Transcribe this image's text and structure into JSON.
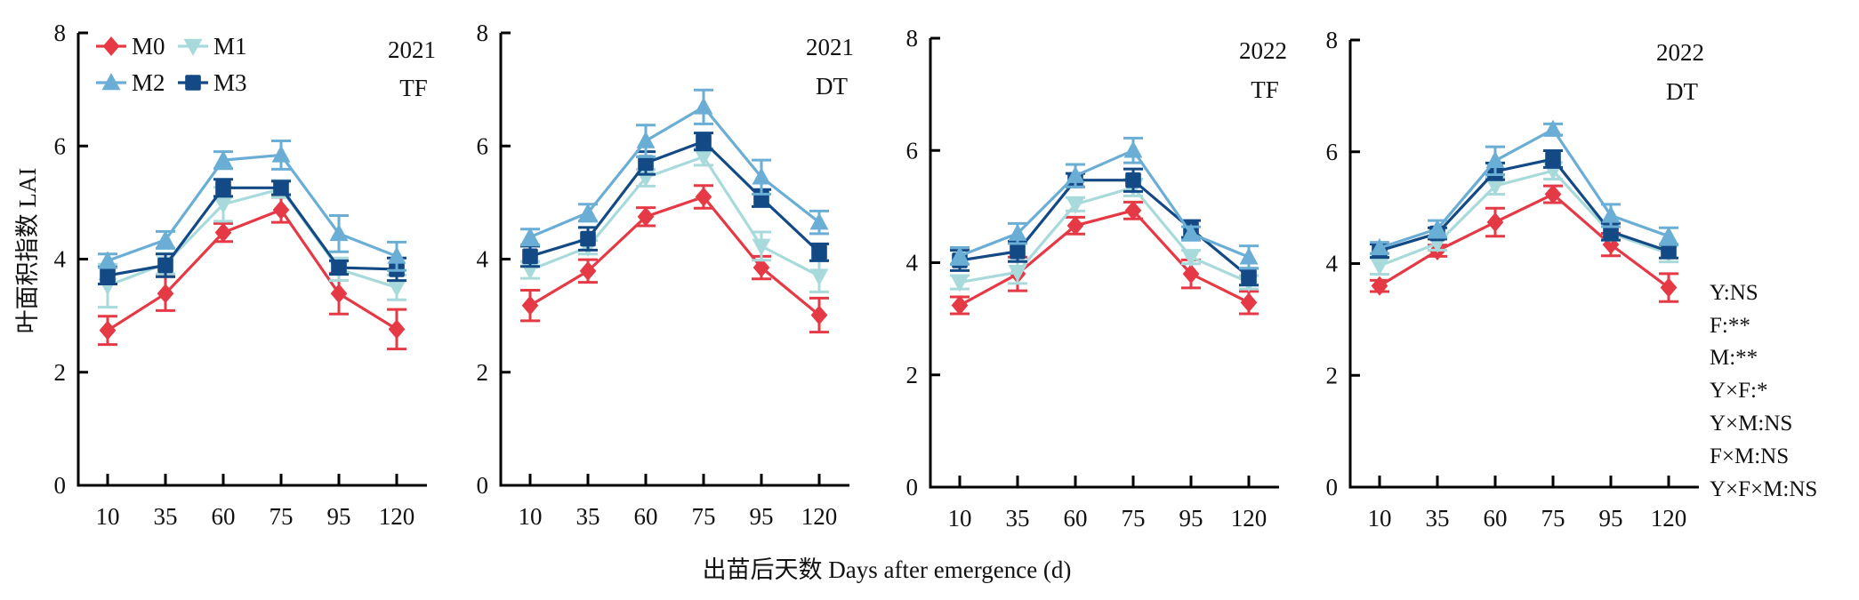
{
  "chart_data": {
    "type": "line",
    "ylabel": "叶面积指数 LAI",
    "xlabel": "出苗后天数 Days after emergence (d)",
    "ylim": [
      0,
      8
    ],
    "yticks": [
      "0",
      "2",
      "4",
      "6",
      "8"
    ],
    "categories": [
      "10",
      "35",
      "60",
      "75",
      "95",
      "120"
    ],
    "grid": false,
    "legend": {
      "placement": "top-left of first panel",
      "entries": [
        {
          "name": "M0",
          "marker": "diamond",
          "color": "#e63946"
        },
        {
          "name": "M1",
          "marker": "triangle-down",
          "color": "#a8dadc"
        },
        {
          "name": "M2",
          "marker": "triangle-up",
          "color": "#6aaed6"
        },
        {
          "name": "M3",
          "marker": "square",
          "color": "#134a86"
        }
      ]
    },
    "panels": [
      {
        "year": "2021",
        "site": "TF",
        "series": [
          {
            "name": "M0",
            "values": [
              2.74,
              3.39,
              4.47,
              4.87,
              3.39,
              2.76
            ],
            "errors": [
              0.25,
              0.3,
              0.16,
              0.22,
              0.36,
              0.35
            ]
          },
          {
            "name": "M1",
            "values": [
              3.53,
              3.92,
              4.97,
              5.24,
              3.82,
              3.5
            ],
            "errors": [
              0.38,
              0.18,
              0.3,
              0.15,
              0.2,
              0.22
            ]
          },
          {
            "name": "M2",
            "values": [
              3.97,
              4.34,
              5.75,
              5.84,
              4.45,
              4.05
            ],
            "errors": [
              0.12,
              0.15,
              0.15,
              0.25,
              0.32,
              0.25
            ]
          },
          {
            "name": "M3",
            "values": [
              3.71,
              3.89,
              5.26,
              5.26,
              3.85,
              3.82
            ],
            "errors": [
              0.15,
              0.2,
              0.15,
              0.12,
              0.12,
              0.2
            ]
          }
        ]
      },
      {
        "year": "2021",
        "site": "DT",
        "series": [
          {
            "name": "M0",
            "values": [
              3.18,
              3.79,
              4.75,
              5.1,
              3.85,
              3.01
            ],
            "errors": [
              0.27,
              0.2,
              0.16,
              0.2,
              0.2,
              0.3
            ]
          },
          {
            "name": "M1",
            "values": [
              3.81,
              4.21,
              5.44,
              5.81,
              4.23,
              3.7
            ],
            "errors": [
              0.15,
              0.12,
              0.15,
              0.15,
              0.25,
              0.28
            ]
          },
          {
            "name": "M2",
            "values": [
              4.39,
              4.82,
              6.09,
              6.69,
              5.45,
              4.65
            ],
            "errors": [
              0.14,
              0.15,
              0.28,
              0.3,
              0.3,
              0.2
            ]
          },
          {
            "name": "M3",
            "values": [
              4.05,
              4.36,
              5.7,
              6.08,
              5.08,
              4.12
            ],
            "errors": [
              0.18,
              0.2,
              0.2,
              0.15,
              0.15,
              0.15
            ]
          }
        ]
      },
      {
        "year": "2022",
        "site": "TF",
        "series": [
          {
            "name": "M0",
            "values": [
              3.24,
              3.8,
              4.66,
              4.93,
              3.8,
              3.29
            ],
            "errors": [
              0.15,
              0.3,
              0.15,
              0.15,
              0.25,
              0.2
            ]
          },
          {
            "name": "M1",
            "values": [
              3.65,
              3.83,
              5.04,
              5.34,
              4.1,
              3.65
            ],
            "errors": [
              0.12,
              0.2,
              0.12,
              0.15,
              0.12,
              0.12
            ]
          },
          {
            "name": "M2",
            "values": [
              4.12,
              4.52,
              5.55,
              6.0,
              4.52,
              4.1
            ],
            "errors": [
              0.15,
              0.18,
              0.2,
              0.22,
              0.12,
              0.2
            ]
          },
          {
            "name": "M3",
            "values": [
              4.04,
              4.2,
              5.47,
              5.47,
              4.6,
              3.75
            ],
            "errors": [
              0.18,
              0.18,
              0.12,
              0.2,
              0.15,
              0.15
            ]
          }
        ]
      },
      {
        "year": "2022",
        "site": "DT",
        "series": [
          {
            "name": "M0",
            "values": [
              3.6,
              4.23,
              4.74,
              5.24,
              4.34,
              3.57
            ],
            "errors": [
              0.1,
              0.1,
              0.25,
              0.15,
              0.2,
              0.25
            ]
          },
          {
            "name": "M1",
            "values": [
              3.96,
              4.36,
              5.39,
              5.66,
              4.54,
              4.18
            ],
            "errors": [
              0.15,
              0.12,
              0.15,
              0.15,
              0.12,
              0.15
            ]
          },
          {
            "name": "M2",
            "values": [
              4.28,
              4.62,
              5.84,
              6.4,
              4.86,
              4.49
            ],
            "errors": [
              0.1,
              0.15,
              0.25,
              0.1,
              0.2,
              0.15
            ]
          },
          {
            "name": "M3",
            "values": [
              4.23,
              4.54,
              5.65,
              5.87,
              4.57,
              4.22
            ],
            "errors": [
              0.12,
              0.1,
              0.15,
              0.15,
              0.15,
              0.12
            ]
          }
        ]
      }
    ],
    "annotations": [
      "Y:NS",
      "F:**",
      "M:**",
      "Y×F:*",
      "Y×M:NS",
      "F×M:NS",
      "Y×F×M:NS"
    ]
  }
}
